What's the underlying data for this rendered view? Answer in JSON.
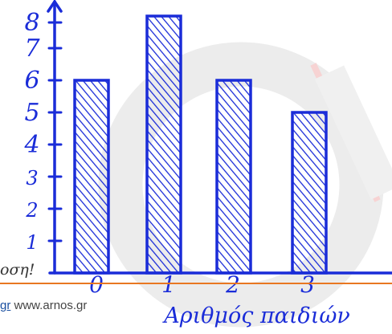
{
  "chart_data": {
    "type": "bar",
    "categories": [
      "0",
      "1",
      "2",
      "3"
    ],
    "values": [
      6,
      8,
      6,
      5
    ],
    "title": "",
    "xlabel": "Αριθμός παιδιών",
    "ylabel": "",
    "yticks": [
      "1",
      "2",
      "3",
      "4",
      "5",
      "6",
      "7",
      "8"
    ],
    "ylim": [
      0,
      8
    ],
    "grid": false,
    "bar_color": "#1a2cd8",
    "hatch_color": "#1a2cd8",
    "axis_color": "#1a2cd8"
  },
  "footer": {
    "left_text": "οση!",
    "link_a": "gr",
    "link_b": "www.arnos.gr",
    "rule_color": "#e87722"
  },
  "colors": {
    "watermark": "#e6e6e6",
    "watermark_accent": "#f7c6c6"
  }
}
